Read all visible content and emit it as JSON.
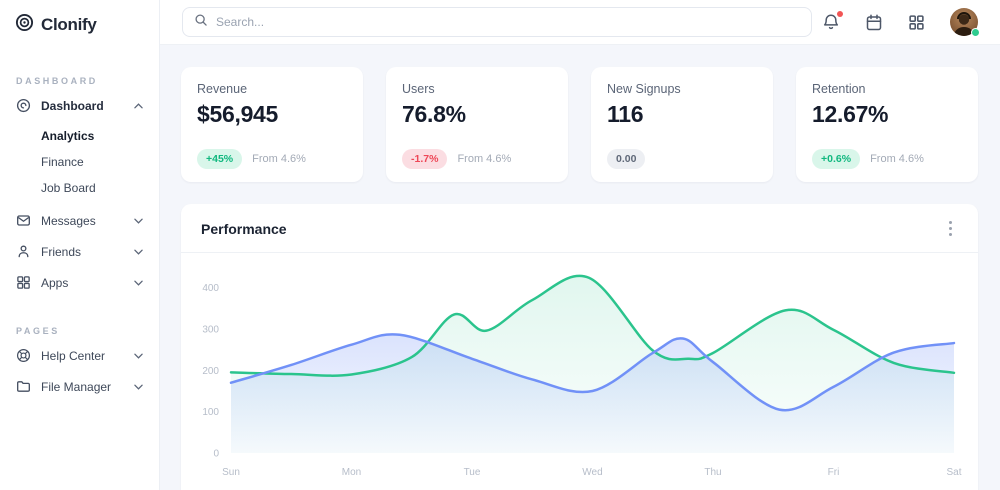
{
  "app": {
    "name": "Clonify"
  },
  "topbar": {
    "search_placeholder": "Search...",
    "icons": [
      {
        "name": "bell-icon",
        "notification_dot": true
      },
      {
        "name": "calendar-icon"
      },
      {
        "name": "apps-grid-icon"
      },
      {
        "name": "avatar",
        "status": "online"
      }
    ]
  },
  "sidebar": {
    "sections": [
      {
        "label": "DASHBOARD",
        "items": [
          {
            "label": "Dashboard",
            "icon": "dashboard-icon",
            "expanded": true,
            "active": true,
            "children": [
              "Analytics",
              "Finance",
              "Job Board"
            ],
            "active_child": "Analytics"
          },
          {
            "label": "Messages",
            "icon": "envelope-icon",
            "expanded": false
          },
          {
            "label": "Friends",
            "icon": "person-icon",
            "expanded": false
          },
          {
            "label": "Apps",
            "icon": "grid-icon",
            "expanded": false
          }
        ]
      },
      {
        "label": "PAGES",
        "items": [
          {
            "label": "Help Center",
            "icon": "lifebuoy-icon",
            "expanded": false
          },
          {
            "label": "File Manager",
            "icon": "folder-icon",
            "expanded": false
          }
        ]
      }
    ]
  },
  "stats": [
    {
      "title": "Revenue",
      "value": "$56,945",
      "badge": "+45%",
      "badge_type": "positive",
      "note": "From 4.6%"
    },
    {
      "title": "Users",
      "value": "76.8%",
      "badge": "-1.7%",
      "badge_type": "negative",
      "note": "From 4.6%"
    },
    {
      "title": "New Signups",
      "value": "116",
      "badge": "0.00",
      "badge_type": "neutral",
      "note": ""
    },
    {
      "title": "Retention",
      "value": "12.67%",
      "badge": "+0.6%",
      "badge_type": "positive",
      "note": "From 4.6%"
    }
  ],
  "chart_card": {
    "title": "Performance"
  },
  "chart_data": {
    "type": "area",
    "title": "Performance",
    "x_labels": [
      "Sun",
      "Mon",
      "Tue",
      "Wed",
      "Thu",
      "Fri",
      "Sat"
    ],
    "y_ticks": [
      0,
      100,
      200,
      300,
      400
    ],
    "ylim": [
      0,
      450
    ],
    "grid": false,
    "legend": "none",
    "smooth": true,
    "series": [
      {
        "name": "series-green",
        "color": "#2bc48d",
        "fill_opacity_top": 0.15,
        "fill_opacity_bottom": 0.02,
        "points": [
          [
            0,
            195
          ],
          [
            0.5,
            191
          ],
          [
            1,
            190
          ],
          [
            1.5,
            232
          ],
          [
            1.85,
            335
          ],
          [
            2.12,
            296
          ],
          [
            2.5,
            370
          ],
          [
            2.97,
            424
          ],
          [
            3.5,
            248
          ],
          [
            3.8,
            228
          ],
          [
            4,
            242
          ],
          [
            4.6,
            345
          ],
          [
            5,
            298
          ],
          [
            5.5,
            218
          ],
          [
            6,
            194
          ]
        ]
      },
      {
        "name": "series-blue",
        "color": "#7191f7",
        "fill_opacity_top": 0.38,
        "fill_opacity_bottom": 0.04,
        "points": [
          [
            0,
            170
          ],
          [
            0.5,
            213
          ],
          [
            1,
            262
          ],
          [
            1.4,
            286
          ],
          [
            2,
            228
          ],
          [
            2.5,
            178
          ],
          [
            3,
            150
          ],
          [
            3.5,
            242
          ],
          [
            3.75,
            277
          ],
          [
            4,
            220
          ],
          [
            4.55,
            105
          ],
          [
            5,
            160
          ],
          [
            5.5,
            243
          ],
          [
            6,
            266
          ]
        ]
      }
    ]
  },
  "colors": {
    "background": "#f4f6fb",
    "accent_green": "#2bc48d",
    "accent_blue": "#7191f7",
    "badge_positive_bg": "#d9f6ea",
    "badge_negative_bg": "#fbdde2",
    "badge_neutral_bg": "#edeff3"
  }
}
